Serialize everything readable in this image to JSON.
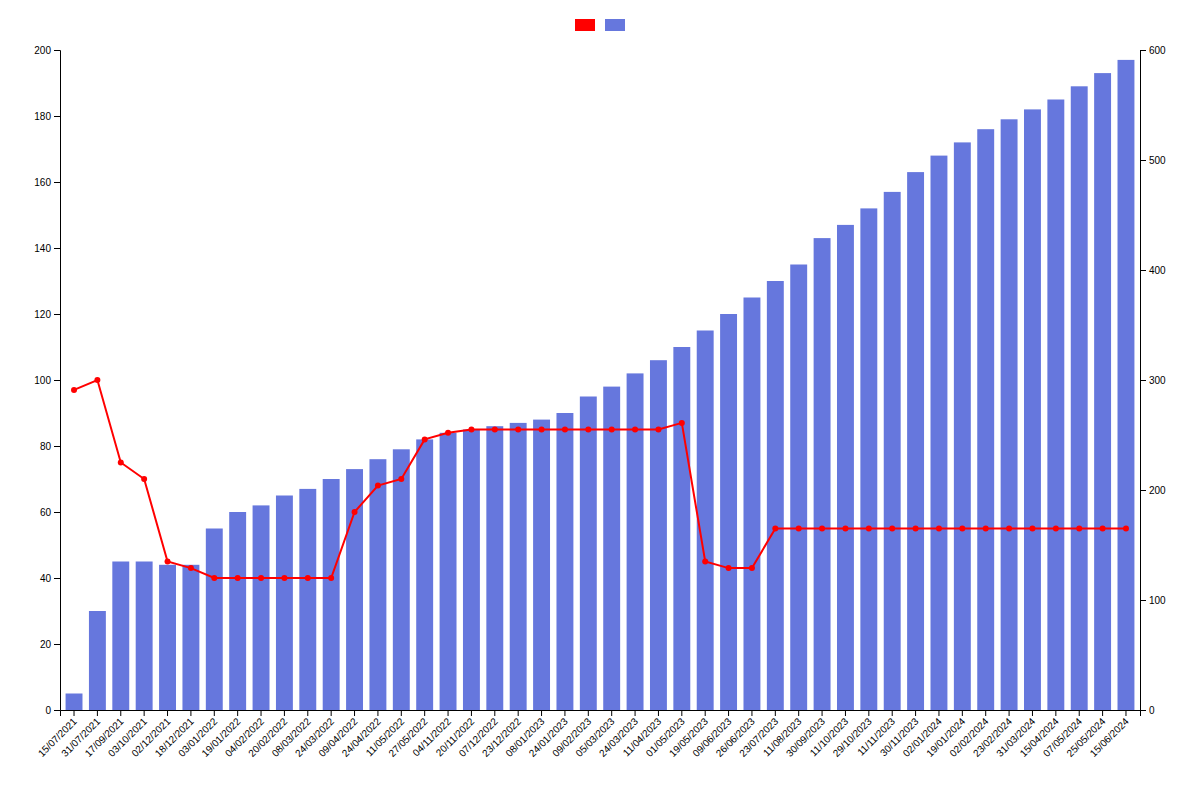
{
  "chart_data": {
    "type": "bar",
    "categories": [
      "15/07/2021",
      "31/07/2021",
      "17/09/2021",
      "03/10/2021",
      "02/12/2021",
      "18/12/2021",
      "03/01/2022",
      "19/01/2022",
      "04/02/2022",
      "20/02/2022",
      "08/03/2022",
      "24/03/2022",
      "09/04/2022",
      "24/04/2022",
      "11/05/2022",
      "27/05/2022",
      "04/11/2022",
      "20/11/2022",
      "07/12/2022",
      "23/12/2022",
      "08/01/2023",
      "24/01/2023",
      "09/02/2023",
      "05/03/2023",
      "24/03/2023",
      "11/04/2023",
      "01/05/2023",
      "19/05/2023",
      "09/06/2023",
      "26/06/2023",
      "23/07/2023",
      "11/08/2023",
      "30/09/2023",
      "11/10/2023",
      "29/10/2023",
      "11/11/2023",
      "30/11/2023",
      "02/01/2024",
      "19/01/2024",
      "02/02/2024",
      "23/02/2024",
      "31/03/2024",
      "15/04/2024",
      "07/05/2024",
      "25/05/2024",
      "15/06/2024"
    ],
    "series": [
      {
        "type": "bar",
        "color": "#6677dd",
        "values": [
          5,
          30,
          45,
          45,
          44,
          44,
          55,
          60,
          62,
          65,
          67,
          70,
          73,
          76,
          79,
          82,
          84,
          85,
          86,
          87,
          88,
          90,
          95,
          98,
          102,
          106,
          110,
          115,
          120,
          125,
          130,
          135,
          143,
          147,
          152,
          157,
          163,
          168,
          172,
          176,
          179,
          182,
          185,
          189,
          193,
          197
        ]
      },
      {
        "type": "line",
        "color": "#ff0000",
        "marker": "circle",
        "values": [
          97,
          100,
          75,
          70,
          45,
          43,
          40,
          40,
          40,
          40,
          40,
          40,
          60,
          68,
          70,
          82,
          84,
          85,
          85,
          85,
          85,
          85,
          85,
          85,
          85,
          85,
          87,
          45,
          43,
          43,
          55,
          55,
          55,
          55,
          55,
          55,
          55,
          55,
          55,
          55,
          55,
          55,
          55,
          55,
          55,
          55
        ]
      }
    ],
    "ylim": [
      0,
      200
    ],
    "yticks": [
      0,
      20,
      40,
      60,
      80,
      100,
      120,
      140,
      160,
      180,
      200
    ],
    "y2lim": [
      0,
      600
    ],
    "y2ticks": [
      0,
      100,
      200,
      300,
      400,
      500,
      600
    ],
    "grid": false,
    "legend": "top"
  }
}
